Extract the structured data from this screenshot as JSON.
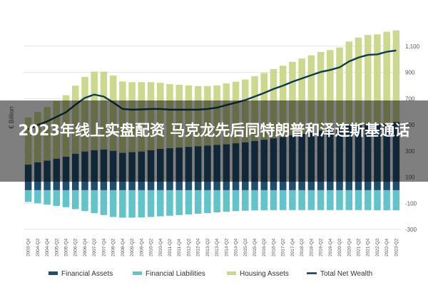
{
  "overlay": {
    "headline": "2023年线上实盘配资 马克龙先后同特朗普和泽连斯基通话"
  },
  "colors": {
    "financial_assets": "#1f4e6e",
    "financial_liabilities": "#62c3c9",
    "housing_assets": "#cbd88d",
    "total_net_wealth": "#0f3a52"
  },
  "chart_data": {
    "type": "area",
    "ylabel": "€ Billion",
    "ylim": [
      -300,
      1300
    ],
    "yticks": [
      -300,
      -100,
      100,
      300,
      500,
      700,
      900,
      1100
    ],
    "ytick_labels": [
      "-300",
      "-100",
      "100",
      "300",
      "500",
      "700",
      "900",
      "1,100"
    ],
    "grid": true,
    "legend_position": "bottom",
    "categories": [
      "2003-Q4",
      "2004-Q2",
      "2004-Q4",
      "2005-Q2",
      "2005-Q4",
      "2006-Q2",
      "2006-Q4",
      "2007-Q2",
      "2007-Q4",
      "2008-Q2",
      "2008-Q4",
      "2009-Q2",
      "2009-Q4",
      "2010-Q2",
      "2010-Q4",
      "2011-Q2",
      "2011-Q4",
      "2012-Q2",
      "2012-Q4",
      "2013-Q2",
      "2013-Q4",
      "2014-Q2",
      "2014-Q4",
      "2015-Q2",
      "2015-Q4",
      "2016-Q2",
      "2016-Q4",
      "2017-Q2",
      "2017-Q4",
      "2018-Q2",
      "2018-Q4",
      "2019-Q2",
      "2019-Q4",
      "2020-Q2",
      "2020-Q4",
      "2021-Q2",
      "2021-Q4",
      "2022-Q2",
      "2022-Q4",
      "2023-Q2"
    ],
    "series": [
      {
        "name": "Financial Assets",
        "values": [
          195,
          212,
          225,
          240,
          255,
          278,
          295,
          305,
          310,
          300,
          285,
          290,
          295,
          305,
          315,
          320,
          325,
          330,
          335,
          340,
          345,
          350,
          358,
          365,
          375,
          385,
          395,
          405,
          420,
          430,
          440,
          455,
          470,
          480,
          495,
          505,
          500,
          500,
          510,
          520
        ]
      },
      {
        "name": "Financial Liabilities",
        "values": [
          -90,
          -100,
          -110,
          -120,
          -130,
          -145,
          -160,
          -175,
          -190,
          -205,
          -210,
          -210,
          -208,
          -205,
          -200,
          -195,
          -190,
          -185,
          -180,
          -175,
          -170,
          -165,
          -160,
          -157,
          -155,
          -153,
          -152,
          -152,
          -152,
          -152,
          -152,
          -152,
          -152,
          -152,
          -152,
          -152,
          -152,
          -153,
          -153,
          -153
        ]
      },
      {
        "name": "Housing Assets",
        "values": [
          360,
          385,
          410,
          440,
          470,
          520,
          570,
          600,
          595,
          575,
          545,
          535,
          530,
          520,
          505,
          490,
          480,
          470,
          460,
          455,
          455,
          465,
          470,
          480,
          495,
          510,
          530,
          545,
          560,
          575,
          590,
          600,
          600,
          610,
          640,
          660,
          685,
          690,
          700,
          700
        ]
      },
      {
        "name": "Total Net Wealth",
        "values": [
          465,
          497,
          525,
          560,
          595,
          653,
          705,
          730,
          715,
          670,
          620,
          615,
          617,
          620,
          620,
          615,
          615,
          615,
          615,
          620,
          630,
          650,
          668,
          688,
          715,
          742,
          773,
          798,
          828,
          853,
          878,
          903,
          918,
          938,
          983,
          1013,
          1033,
          1037,
          1057,
          1067
        ]
      }
    ]
  }
}
